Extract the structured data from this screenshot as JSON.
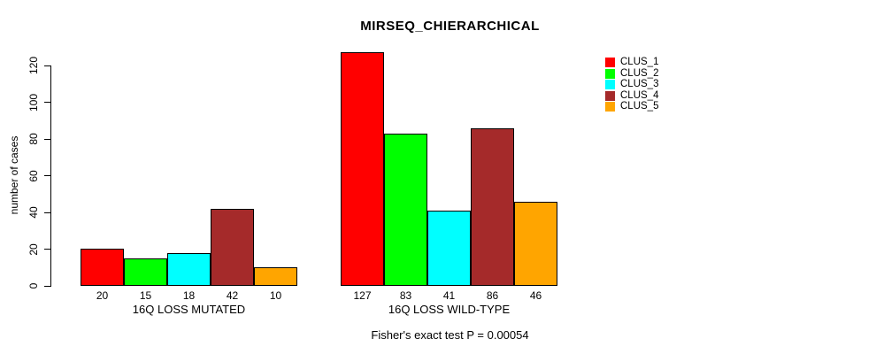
{
  "title": "MIRSEQ_CHIERARCHICAL",
  "caption": "Fisher's exact test P = 0.00054",
  "chart_data": {
    "type": "bar",
    "title": "MIRSEQ_CHIERARCHICAL",
    "ylabel": "number of cases",
    "xlabel": "",
    "ylim": [
      0,
      120
    ],
    "yticks": [
      0,
      20,
      40,
      60,
      80,
      100,
      120
    ],
    "grid": false,
    "legend_position": "topright",
    "series": [
      {
        "name": "CLUS_1",
        "color": "#FF0000",
        "values": [
          20,
          127
        ]
      },
      {
        "name": "CLUS_2",
        "color": "#00FF00",
        "values": [
          15,
          83
        ]
      },
      {
        "name": "CLUS_3",
        "color": "#00FFFF",
        "values": [
          18,
          41
        ]
      },
      {
        "name": "CLUS_4",
        "color": "#A52A2A",
        "values": [
          42,
          86
        ]
      },
      {
        "name": "CLUS_5",
        "color": "#FFA500",
        "values": [
          10,
          46
        ]
      }
    ],
    "groups": [
      {
        "label": "16Q LOSS MUTATED",
        "values": [
          20,
          15,
          18,
          42,
          10
        ]
      },
      {
        "label": "16Q LOSS WILD-TYPE",
        "values": [
          127,
          83,
          41,
          86,
          46
        ]
      }
    ],
    "bar_value_labels": true,
    "annotation": "Fisher's exact test P = 0.00054"
  }
}
